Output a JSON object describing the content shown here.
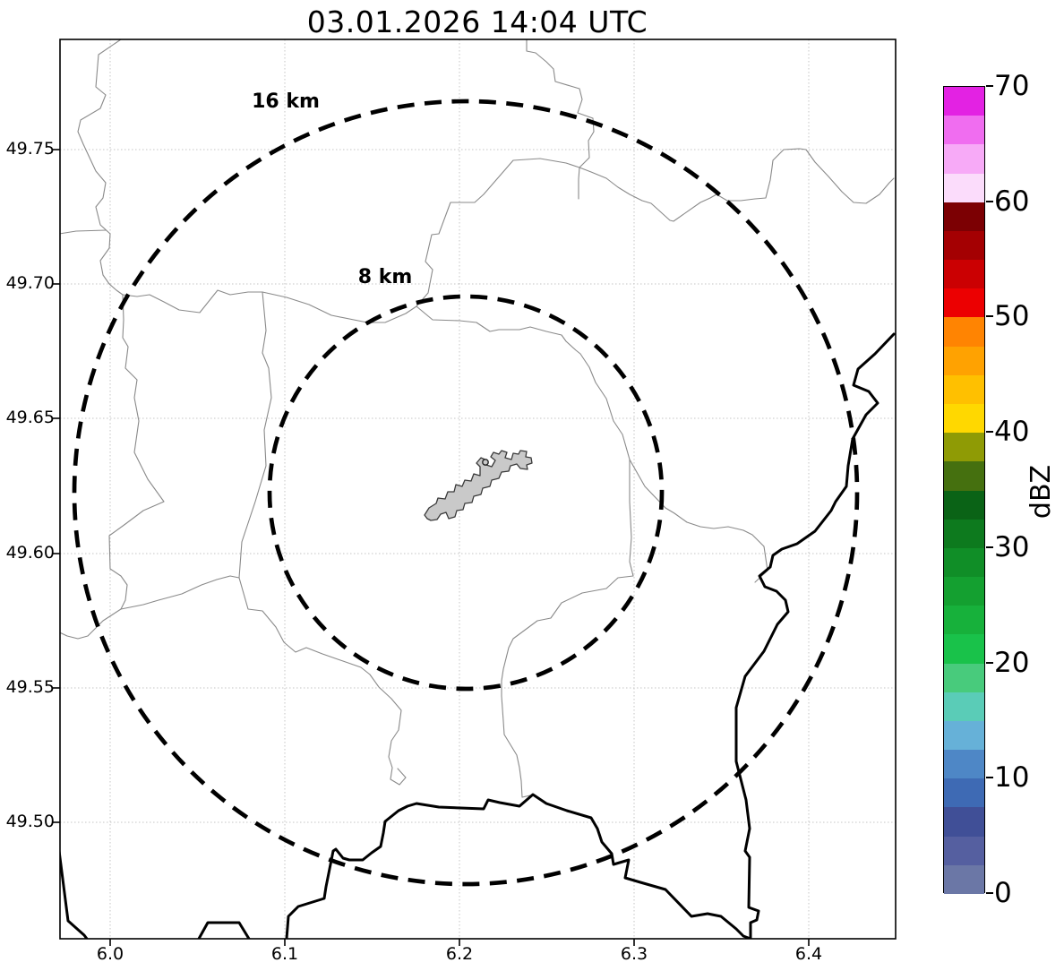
{
  "title": "03.01.2026 14:04 UTC",
  "map": {
    "x_tick_labels": [
      "6.0",
      "6.1",
      "6.2",
      "6.3",
      "6.4"
    ],
    "y_tick_labels": [
      "49.75",
      "49.70",
      "49.65",
      "49.60",
      "49.55",
      "49.50"
    ],
    "range_rings": [
      {
        "label": "16 km"
      },
      {
        "label": "8 km"
      }
    ],
    "city_fill_color": "#c9c9c9"
  },
  "colorbar": {
    "label": "dBZ",
    "tick_labels": [
      "70",
      "60",
      "50",
      "40",
      "30",
      "20",
      "10",
      "0"
    ],
    "value_min": 0,
    "value_max": 70,
    "colors_top_to_bottom": [
      "#e322e3",
      "#f06df0",
      "#f7aaf7",
      "#fbdcfb",
      "#7c0003",
      "#a40002",
      "#cb0002",
      "#ec0001",
      "#ff8402",
      "#ffa201",
      "#ffc000",
      "#ffd800",
      "#8f9b05",
      "#45700f",
      "#0a6316",
      "#0d7a1e",
      "#108e27",
      "#14a030",
      "#17b13b",
      "#19c24a",
      "#48cb7c",
      "#5accb7",
      "#66b1d8",
      "#4e87c6",
      "#3e6ab4",
      "#404f97",
      "#555fa0",
      "#6b77a6"
    ]
  }
}
